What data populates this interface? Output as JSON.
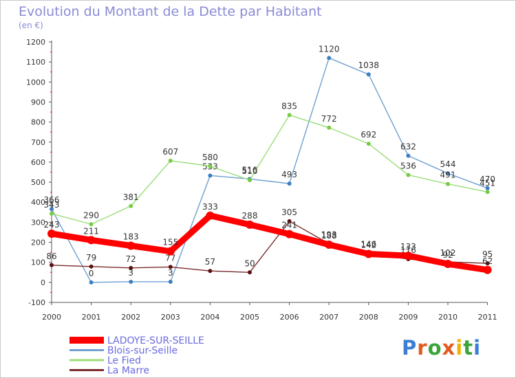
{
  "header": {
    "title": "Evolution du Montant de la Dette par Habitant",
    "subtitle": "(en €)"
  },
  "logo": {
    "text": "Proxiti",
    "colors": [
      "#3a7fd4",
      "#e35a1d",
      "#3aa33a",
      "#e35a1d",
      "#f0b400",
      "#3aa33a",
      "#3a7fd4"
    ]
  },
  "chart_data": {
    "type": "line",
    "title": "Evolution du Montant de la Dette par Habitant",
    "subtitle": "(en €)",
    "categories": [
      "2000",
      "2001",
      "2002",
      "2003",
      "2004",
      "2005",
      "2006",
      "2007",
      "2008",
      "2009",
      "2010",
      "2011"
    ],
    "ylim": [
      -100,
      1200
    ],
    "yticks": [
      "-100",
      "0",
      "100",
      "200",
      "300",
      "400",
      "500",
      "600",
      "700",
      "800",
      "900",
      "1000",
      "1100",
      "1200"
    ],
    "grid": false,
    "legend_position": "bottom-left",
    "series": [
      {
        "name": "LADOYE-SUR-SEILLE",
        "color": "#ff0000",
        "marker": "#ff0000",
        "emphasis": true,
        "values": [
          243,
          211,
          183,
          155,
          333,
          288,
          241,
          188,
          142,
          133,
          92,
          62
        ],
        "labels": [
          "243",
          "211",
          "183",
          "155",
          "333",
          "288",
          "241",
          "188",
          "142",
          "133",
          "92",
          "62"
        ]
      },
      {
        "name": "Blois-sur-Seille",
        "color": "#6e9fd0",
        "marker": "#3c7fc0",
        "emphasis": false,
        "values": [
          366,
          0,
          3,
          3,
          533,
          516,
          493,
          1120,
          1038,
          632,
          544,
          470
        ],
        "labels": [
          "366",
          "0",
          "3",
          "3",
          "533",
          "516",
          "493",
          "1120",
          "1038",
          "632",
          "544",
          "470"
        ]
      },
      {
        "name": "Le Fied",
        "color": "#99dd77",
        "marker": "#77cc44",
        "emphasis": false,
        "values": [
          343,
          290,
          381,
          607,
          580,
          510,
          835,
          772,
          692,
          536,
          491,
          451
        ],
        "labels": [
          "343",
          "290",
          "381",
          "607",
          "580",
          "510",
          "835",
          "772",
          "692",
          "536",
          "491",
          "451"
        ]
      },
      {
        "name": "La Marre",
        "color": "#7a2a2a",
        "marker": "#5a1010",
        "emphasis": false,
        "values": [
          86,
          79,
          72,
          77,
          57,
          50,
          305,
          193,
          146,
          116,
          102,
          95
        ],
        "labels": [
          "86",
          "79",
          "72",
          "77",
          "57",
          "50",
          "305",
          "193",
          "146",
          "116",
          "102",
          "95"
        ]
      }
    ]
  }
}
